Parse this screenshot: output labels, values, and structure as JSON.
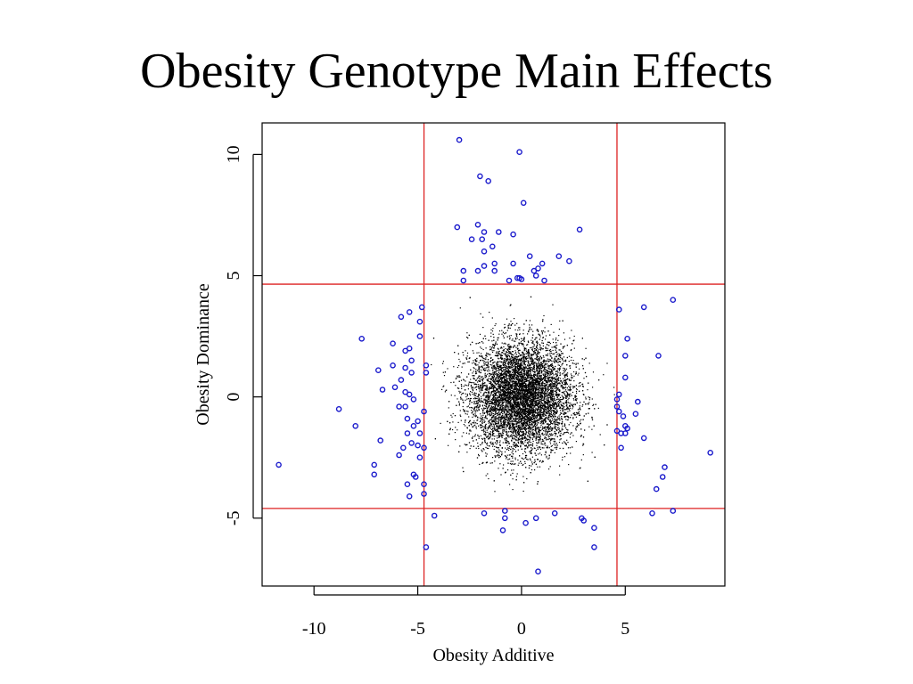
{
  "slide": {
    "title": "Obesity Genotype Main Effects"
  },
  "chart_data": {
    "type": "scatter",
    "xlabel": "Obesity Additive",
    "ylabel": "Obesity Dominance",
    "xlim": [
      -12.5,
      9.8
    ],
    "ylim": [
      -7.8,
      11.3
    ],
    "x_ticks": [
      -10,
      -5,
      0,
      5
    ],
    "x_tick_labels": [
      "-10",
      "-5",
      "0",
      "5"
    ],
    "y_ticks": [
      -5,
      0,
      5,
      10
    ],
    "y_tick_labels": [
      "-5",
      "0",
      "5",
      "10"
    ],
    "threshold_lines": {
      "x": [
        -4.7,
        4.6
      ],
      "y": [
        -4.6,
        4.65
      ],
      "color": "#dd2222"
    },
    "background_cloud": {
      "description_level": "dense black points centered near origin",
      "color": "#000000",
      "center": [
        0,
        0
      ],
      "sd": [
        1.25,
        1.15
      ],
      "range_x": [
        -4.6,
        4.5
      ],
      "range_y": [
        -4.5,
        4.5
      ],
      "approx_count": 9000
    },
    "highlighted_points": {
      "color": "#1a1acc",
      "marker": "open circle",
      "points": [
        [
          -3.0,
          10.6
        ],
        [
          -0.1,
          10.1
        ],
        [
          -2.0,
          9.1
        ],
        [
          -1.6,
          8.9
        ],
        [
          0.1,
          8.0
        ],
        [
          -3.1,
          7.0
        ],
        [
          -2.1,
          7.1
        ],
        [
          -1.8,
          6.8
        ],
        [
          -1.1,
          6.8
        ],
        [
          -0.4,
          6.7
        ],
        [
          2.8,
          6.9
        ],
        [
          -2.4,
          6.5
        ],
        [
          -1.9,
          6.5
        ],
        [
          -1.4,
          6.2
        ],
        [
          -1.8,
          6.0
        ],
        [
          0.4,
          5.8
        ],
        [
          1.8,
          5.8
        ],
        [
          2.3,
          5.6
        ],
        [
          1.0,
          5.5
        ],
        [
          -0.4,
          5.5
        ],
        [
          -1.3,
          5.5
        ],
        [
          -1.8,
          5.4
        ],
        [
          -2.1,
          5.2
        ],
        [
          -2.8,
          5.2
        ],
        [
          0.6,
          5.2
        ],
        [
          0.8,
          5.3
        ],
        [
          0.7,
          5.0
        ],
        [
          -1.3,
          5.2
        ],
        [
          1.1,
          4.8
        ],
        [
          -0.2,
          4.9
        ],
        [
          -0.6,
          4.8
        ],
        [
          -0.1,
          4.9
        ],
        [
          -2.8,
          4.8
        ],
        [
          0.0,
          4.85
        ],
        [
          -5.8,
          3.3
        ],
        [
          -4.8,
          3.7
        ],
        [
          -5.4,
          3.5
        ],
        [
          -4.9,
          3.1
        ],
        [
          -7.7,
          2.4
        ],
        [
          -6.2,
          2.2
        ],
        [
          -4.9,
          2.5
        ],
        [
          -5.6,
          1.9
        ],
        [
          -5.4,
          2.0
        ],
        [
          -5.3,
          1.5
        ],
        [
          -6.2,
          1.3
        ],
        [
          -5.6,
          1.2
        ],
        [
          -4.6,
          1.3
        ],
        [
          -6.9,
          1.1
        ],
        [
          -5.3,
          1.0
        ],
        [
          -4.6,
          1.0
        ],
        [
          -5.8,
          0.7
        ],
        [
          -6.1,
          0.4
        ],
        [
          -6.7,
          0.3
        ],
        [
          -5.6,
          0.2
        ],
        [
          -5.4,
          0.1
        ],
        [
          -5.2,
          -0.1
        ],
        [
          -5.9,
          -0.4
        ],
        [
          -5.6,
          -0.4
        ],
        [
          -8.8,
          -0.5
        ],
        [
          -4.7,
          -0.6
        ],
        [
          -5.5,
          -0.9
        ],
        [
          -5.0,
          -1.0
        ],
        [
          -5.2,
          -1.2
        ],
        [
          -8.0,
          -1.2
        ],
        [
          -5.5,
          -1.5
        ],
        [
          -4.9,
          -1.5
        ],
        [
          -6.8,
          -1.8
        ],
        [
          -5.3,
          -1.9
        ],
        [
          -5.0,
          -2.0
        ],
        [
          -5.7,
          -2.1
        ],
        [
          -4.7,
          -2.1
        ],
        [
          -5.9,
          -2.4
        ],
        [
          -4.9,
          -2.5
        ],
        [
          -7.1,
          -2.8
        ],
        [
          -7.1,
          -3.2
        ],
        [
          -5.2,
          -3.2
        ],
        [
          -5.1,
          -3.3
        ],
        [
          -5.5,
          -3.6
        ],
        [
          -4.7,
          -3.6
        ],
        [
          -4.7,
          -4.0
        ],
        [
          -5.4,
          -4.1
        ],
        [
          -11.7,
          -2.8
        ],
        [
          4.7,
          3.6
        ],
        [
          5.9,
          3.7
        ],
        [
          7.3,
          4.0
        ],
        [
          5.1,
          2.4
        ],
        [
          6.6,
          1.7
        ],
        [
          5.0,
          1.7
        ],
        [
          5.0,
          0.8
        ],
        [
          4.7,
          0.1
        ],
        [
          4.6,
          -0.1
        ],
        [
          5.6,
          -0.2
        ],
        [
          4.6,
          -0.4
        ],
        [
          4.7,
          -0.6
        ],
        [
          5.5,
          -0.7
        ],
        [
          4.9,
          -0.8
        ],
        [
          5.0,
          -1.2
        ],
        [
          5.0,
          -1.5
        ],
        [
          4.6,
          -1.4
        ],
        [
          4.8,
          -1.5
        ],
        [
          5.1,
          -1.3
        ],
        [
          5.9,
          -1.7
        ],
        [
          4.8,
          -2.1
        ],
        [
          9.1,
          -2.3
        ],
        [
          6.9,
          -2.9
        ],
        [
          6.8,
          -3.3
        ],
        [
          6.5,
          -3.8
        ],
        [
          6.3,
          -4.8
        ],
        [
          7.3,
          -4.7
        ],
        [
          -1.8,
          -4.8
        ],
        [
          -0.8,
          -4.7
        ],
        [
          -0.8,
          -5.0
        ],
        [
          0.7,
          -5.0
        ],
        [
          0.2,
          -5.2
        ],
        [
          1.6,
          -4.8
        ],
        [
          2.9,
          -5.0
        ],
        [
          3.0,
          -5.1
        ],
        [
          -0.9,
          -5.5
        ],
        [
          3.5,
          -5.4
        ],
        [
          -4.6,
          -6.2
        ],
        [
          3.5,
          -6.2
        ],
        [
          0.8,
          -7.2
        ],
        [
          -4.2,
          -4.9
        ]
      ]
    }
  }
}
